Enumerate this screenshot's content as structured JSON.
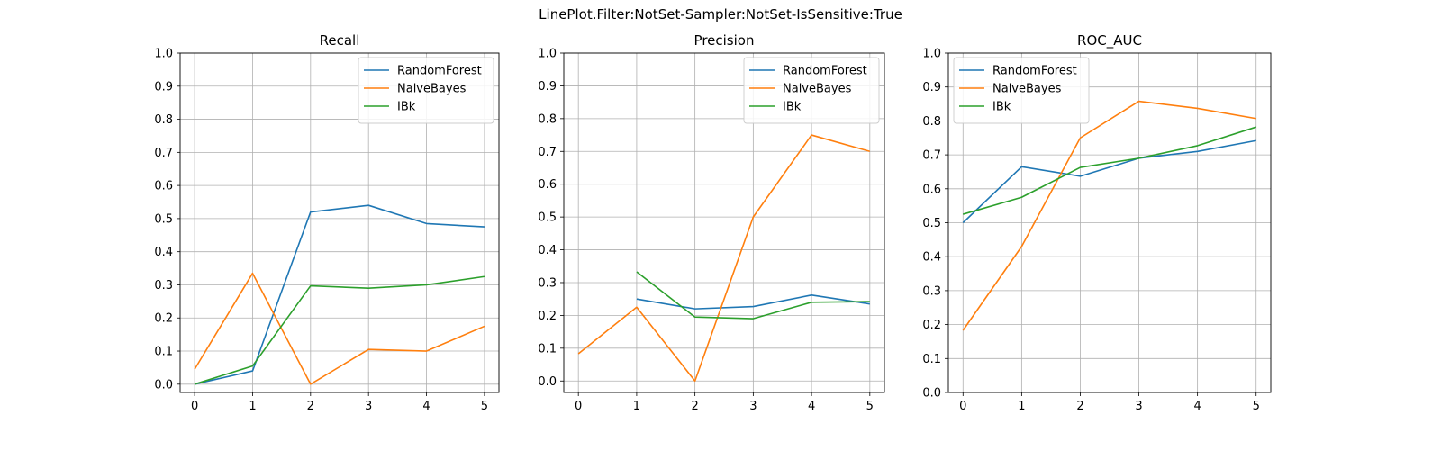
{
  "figure": {
    "suptitle": "LinePlot.Filter:NotSet-Sampler:NotSet-IsSensitive:True"
  },
  "chart_data": [
    {
      "type": "line",
      "title": "Recall",
      "xlabel": "",
      "ylabel": "",
      "x": [
        0,
        1,
        2,
        3,
        4,
        5
      ],
      "xlim": [
        -0.25,
        5.25
      ],
      "ylim": [
        -0.025,
        1.0
      ],
      "xticks": [
        "0",
        "1",
        "2",
        "3",
        "4",
        "5"
      ],
      "yticks": [
        "0.0",
        "0.1",
        "0.2",
        "0.3",
        "0.4",
        "0.5",
        "0.6",
        "0.7",
        "0.8",
        "0.9",
        "1.0"
      ],
      "grid": true,
      "legend": "top-right",
      "series": [
        {
          "name": "RandomForest",
          "color": "#1f77b4",
          "values": [
            0.0,
            0.04,
            0.52,
            0.54,
            0.485,
            0.475
          ]
        },
        {
          "name": "NaiveBayes",
          "color": "#ff7f0e",
          "values": [
            0.045,
            0.335,
            0.0,
            0.105,
            0.1,
            0.175
          ]
        },
        {
          "name": "IBk",
          "color": "#2ca02c",
          "values": [
            0.0,
            0.055,
            0.297,
            0.29,
            0.3,
            0.325
          ]
        }
      ]
    },
    {
      "type": "line",
      "title": "Precision",
      "xlabel": "",
      "ylabel": "",
      "x": [
        0,
        1,
        2,
        3,
        4,
        5
      ],
      "xlim": [
        -0.25,
        5.25
      ],
      "ylim": [
        -0.035,
        1.0
      ],
      "xticks": [
        "0",
        "1",
        "2",
        "3",
        "4",
        "5"
      ],
      "yticks": [
        "0.0",
        "0.1",
        "0.2",
        "0.3",
        "0.4",
        "0.5",
        "0.6",
        "0.7",
        "0.8",
        "0.9",
        "1.0"
      ],
      "grid": true,
      "legend": "top-right",
      "series": [
        {
          "name": "RandomForest",
          "color": "#1f77b4",
          "values": [
            null,
            0.25,
            0.22,
            0.227,
            0.262,
            0.235
          ]
        },
        {
          "name": "NaiveBayes",
          "color": "#ff7f0e",
          "values": [
            0.083,
            0.225,
            0.0,
            0.5,
            0.75,
            0.7
          ]
        },
        {
          "name": "IBk",
          "color": "#2ca02c",
          "values": [
            null,
            0.333,
            0.195,
            0.19,
            0.24,
            0.242
          ]
        }
      ]
    },
    {
      "type": "line",
      "title": "ROC_AUC",
      "xlabel": "",
      "ylabel": "",
      "x": [
        0,
        1,
        2,
        3,
        4,
        5
      ],
      "xlim": [
        -0.25,
        5.25
      ],
      "ylim": [
        0.0,
        1.0
      ],
      "xticks": [
        "0",
        "1",
        "2",
        "3",
        "4",
        "5"
      ],
      "yticks": [
        "0.0",
        "0.1",
        "0.2",
        "0.3",
        "0.4",
        "0.5",
        "0.6",
        "0.7",
        "0.8",
        "0.9",
        "1.0"
      ],
      "grid": true,
      "legend": "top-left",
      "series": [
        {
          "name": "RandomForest",
          "color": "#1f77b4",
          "values": [
            0.5,
            0.665,
            0.637,
            0.69,
            0.71,
            0.742
          ]
        },
        {
          "name": "NaiveBayes",
          "color": "#ff7f0e",
          "values": [
            0.183,
            0.43,
            0.75,
            0.858,
            0.837,
            0.807
          ]
        },
        {
          "name": "IBk",
          "color": "#2ca02c",
          "values": [
            0.525,
            0.575,
            0.663,
            0.69,
            0.727,
            0.782
          ]
        }
      ]
    }
  ]
}
